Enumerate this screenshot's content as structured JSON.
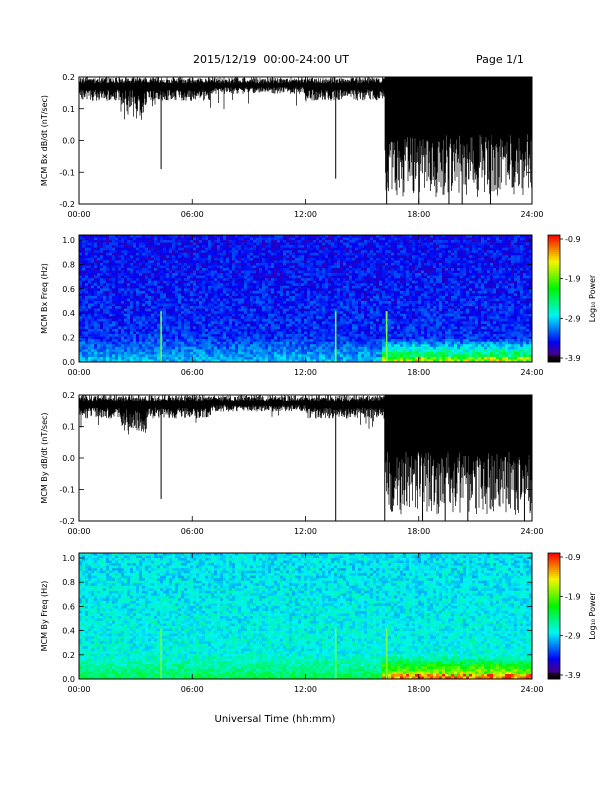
{
  "header": {
    "title": "2015/12/19  00:00-24:00 UT",
    "page": "Page 1/1"
  },
  "xaxis": {
    "label": "Universal Time (hh:mm)",
    "ticks": [
      "00:00",
      "06:00",
      "12:00",
      "18:00",
      "24:00"
    ]
  },
  "colorbar": {
    "label": "Log₁₀ Power",
    "ticks": [
      "-0.9",
      "-1.9",
      "-2.9",
      "-3.9"
    ]
  },
  "chart_data": [
    {
      "type": "line",
      "ylabel": "MCM Bx dB/dt (nT/sec)",
      "xlim": [
        0,
        24
      ],
      "ylim": [
        -0.2,
        0.2
      ],
      "yticks": [
        "0.2",
        "0.1",
        "0.0",
        "-0.1",
        "-0.2"
      ],
      "spikes": [
        {
          "t": 4.35,
          "v": -0.09
        },
        {
          "t": 13.6,
          "v": -0.12
        },
        {
          "t": 16.3,
          "v": -0.2
        },
        {
          "t": 18.0,
          "v": -0.2
        },
        {
          "t": 19.6,
          "v": -0.2
        },
        {
          "t": 20.3,
          "v": -0.2
        },
        {
          "t": 21.8,
          "v": -0.2
        }
      ]
    },
    {
      "type": "heatmap",
      "ylabel": "MCM Bx Freq (Hz)",
      "xlim": [
        0,
        24
      ],
      "ylim": [
        0,
        1.0
      ],
      "yticks": [
        "1.0",
        "0.8",
        "0.6",
        "0.4",
        "0.2",
        "0.0"
      ],
      "clim": [
        -3.9,
        -0.9
      ]
    },
    {
      "type": "line",
      "ylabel": "MCM By dB/dt (nT/sec)",
      "xlim": [
        0,
        24
      ],
      "ylim": [
        -0.2,
        0.2
      ],
      "yticks": [
        "0.2",
        "0.1",
        "0.0",
        "-0.1",
        "-0.2"
      ],
      "spikes": [
        {
          "t": 4.35,
          "v": -0.13
        },
        {
          "t": 13.6,
          "v": -0.2
        },
        {
          "t": 16.2,
          "v": -0.2
        },
        {
          "t": 18.2,
          "v": -0.2
        },
        {
          "t": 19.4,
          "v": -0.2
        },
        {
          "t": 20.6,
          "v": -0.2
        },
        {
          "t": 23.6,
          "v": -0.2
        }
      ]
    },
    {
      "type": "heatmap",
      "ylabel": "MCM By Freq (Hz)",
      "xlim": [
        0,
        24
      ],
      "ylim": [
        0,
        1.0
      ],
      "yticks": [
        "1.0",
        "0.8",
        "0.6",
        "0.4",
        "0.2",
        "0.0"
      ],
      "clim": [
        -3.9,
        -0.9
      ]
    }
  ]
}
